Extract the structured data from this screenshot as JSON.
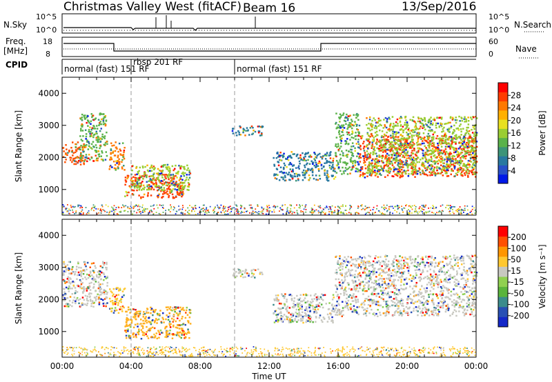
{
  "header": {
    "title": "Christmas Valley West (fitACF)",
    "beam": "Beam 16",
    "date": "13/Sep/2016"
  },
  "nsky_panel": {
    "left_label": "N.Sky",
    "left_ticks": [
      "10^5",
      "10^0"
    ],
    "right_label": "N.Search",
    "right_ticks": [
      "10^5",
      "10^0"
    ]
  },
  "freq_panel": {
    "left_label_1": "Freq.",
    "left_label_2": "[MHz]",
    "left_ticks": [
      "18",
      "8"
    ],
    "right_label": "Nave",
    "right_ticks": [
      "60",
      "0"
    ]
  },
  "cpid_panel": {
    "label": "CPID",
    "segments": [
      {
        "start_h": 0,
        "text": "normal (fast) 151 RF"
      },
      {
        "start_h": 4.0,
        "text": "rbsp 201 RF"
      },
      {
        "start_h": 10.0,
        "text": "normal (fast) 151 RF"
      }
    ]
  },
  "chart_data": [
    {
      "type": "heatmap",
      "name": "Power",
      "ylabel": "Slant Range [km]",
      "x_range_h": [
        0,
        24
      ],
      "ylim": [
        200,
        4500
      ],
      "yticks": [
        "1000",
        "2000",
        "3000",
        "4000"
      ],
      "colorbar": {
        "label": "Power [dB]",
        "ticks": [
          "28",
          "24",
          "20",
          "16",
          "12",
          "8",
          "4"
        ],
        "colors": [
          "#0018e8",
          "#2850c8",
          "#2878a0",
          "#3c9478",
          "#5ab24a",
          "#9acd32",
          "#e8e020",
          "#ffb000",
          "#ff7800",
          "#ff3c00",
          "#ff0000"
        ]
      },
      "regions": [
        {
          "t0": 0.0,
          "t1": 1.3,
          "r0": 1800,
          "r1": 2500,
          "core": "#ff5000"
        },
        {
          "t0": 1.0,
          "t1": 2.6,
          "r0": 1900,
          "r1": 3400,
          "core": "#5ab24a"
        },
        {
          "t0": 2.7,
          "t1": 3.6,
          "r0": 1600,
          "r1": 2500,
          "core": "#ff7800"
        },
        {
          "t0": 3.6,
          "t1": 7.0,
          "r0": 750,
          "r1": 1500,
          "core": "#ff3c00"
        },
        {
          "t0": 4.0,
          "t1": 7.4,
          "r0": 1000,
          "r1": 1800,
          "core": "#9acd32"
        },
        {
          "t0": 9.8,
          "t1": 11.6,
          "r0": 2700,
          "r1": 3000,
          "core": "#2878a0"
        },
        {
          "t0": 12.2,
          "t1": 15.8,
          "r0": 1300,
          "r1": 2200,
          "core": "#2878a0"
        },
        {
          "t0": 15.8,
          "t1": 17.2,
          "r0": 1500,
          "r1": 3400,
          "core": "#5ab24a"
        },
        {
          "t0": 17.2,
          "t1": 24.0,
          "r0": 1400,
          "r1": 2700,
          "core": "#ff3c00"
        },
        {
          "t0": 17.6,
          "t1": 24.0,
          "r0": 1500,
          "r1": 3300,
          "core": "#9acd32"
        }
      ]
    },
    {
      "type": "heatmap",
      "name": "Velocity",
      "ylabel": "Slant Range [km]",
      "xlabel": "Time UT",
      "x_range_h": [
        0,
        24
      ],
      "xticks": [
        "00:00",
        "04:00",
        "08:00",
        "12:00",
        "16:00",
        "20:00",
        "00:00"
      ],
      "ylim": [
        200,
        4500
      ],
      "yticks": [
        "1000",
        "2000",
        "3000",
        "4000"
      ],
      "colorbar": {
        "label": "Velocity [m s⁻¹]",
        "ticks": [
          "200",
          "100",
          "50",
          "15",
          "-15",
          "-50",
          "-100",
          "-200"
        ],
        "colors": [
          "#1428c8",
          "#2850b4",
          "#3c8c8c",
          "#5ab43c",
          "#90d050",
          "#c8c8c0",
          "#ffc830",
          "#ff9600",
          "#ff5000",
          "#ff0000"
        ]
      },
      "regions": [
        {
          "t0": 0.0,
          "t1": 2.6,
          "r0": 1800,
          "r1": 3200,
          "core": "#c8c8c0"
        },
        {
          "t0": 2.7,
          "t1": 3.6,
          "r0": 1600,
          "r1": 2400,
          "core": "#ffc830"
        },
        {
          "t0": 3.6,
          "t1": 7.4,
          "r0": 800,
          "r1": 1800,
          "core": "#ffb020"
        },
        {
          "t0": 9.8,
          "t1": 11.6,
          "r0": 2700,
          "r1": 3000,
          "core": "#c8c8c0"
        },
        {
          "t0": 12.2,
          "t1": 15.8,
          "r0": 1300,
          "r1": 2200,
          "core": "#c8c8c0"
        },
        {
          "t0": 15.8,
          "t1": 24.0,
          "r0": 1500,
          "r1": 3400,
          "core": "#c8c8c0"
        }
      ]
    }
  ]
}
